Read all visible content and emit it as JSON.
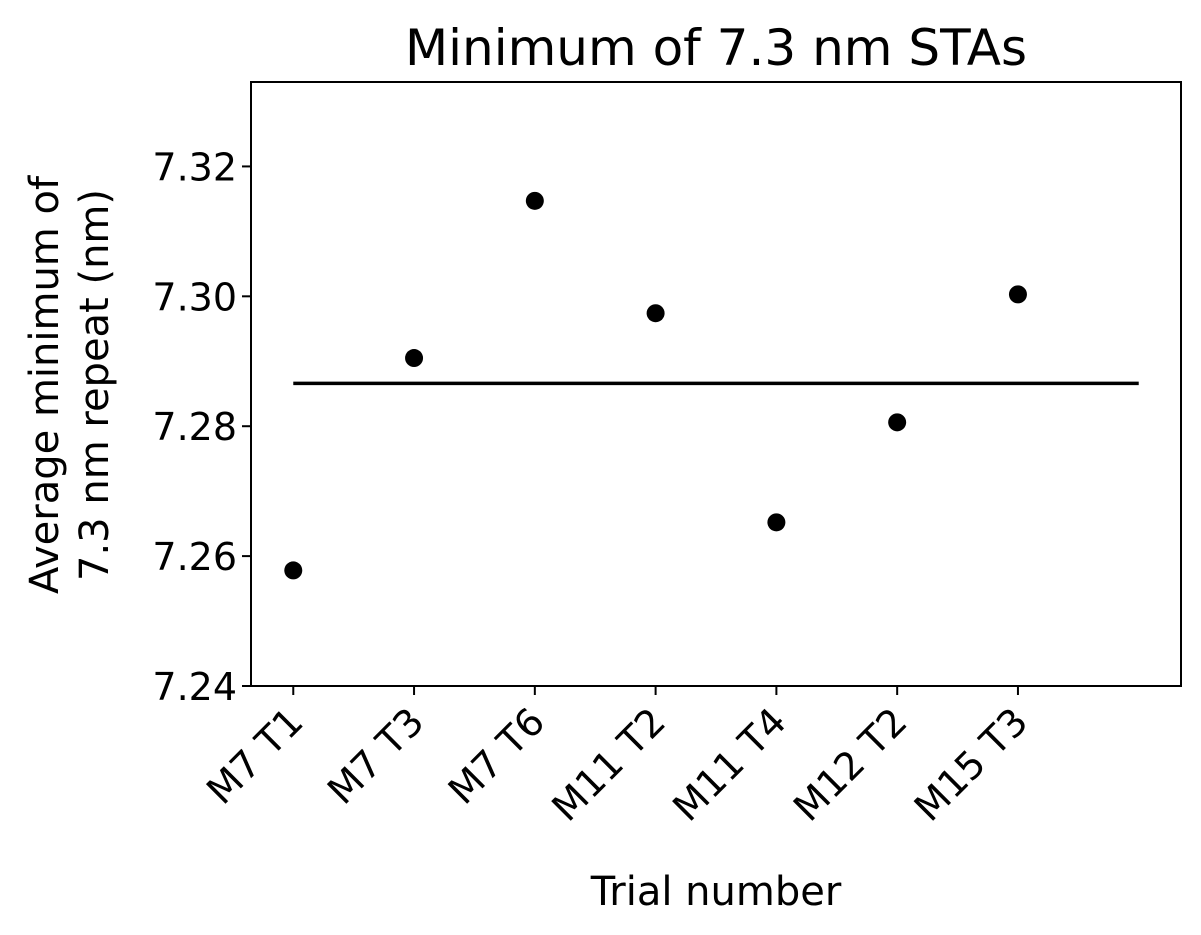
{
  "chart_data": {
    "type": "scatter",
    "title": "Minimum of 7.3 nm STAs",
    "xlabel": "Trial number",
    "ylabel_lines": [
      "Average minimum of",
      "7.3 nm repeat (nm)"
    ],
    "categories": [
      "M7 T1",
      "M7 T3",
      "M7 T6",
      "M11 T2",
      "M11 T4",
      "M12 T2",
      "M15 T3"
    ],
    "values": [
      7.2578,
      7.2905,
      7.3147,
      7.2974,
      7.2652,
      7.2806,
      7.3003
    ],
    "mean_line": {
      "value": 7.2866,
      "x_start": 0,
      "x_end": 7
    },
    "xlim": [
      -0.35,
      7.35
    ],
    "ylim": [
      7.24,
      7.333
    ],
    "yticks": [
      7.24,
      7.26,
      7.28,
      7.3,
      7.32
    ],
    "ytick_labels": [
      "7.24",
      "7.26",
      "7.28",
      "7.30",
      "7.32"
    ],
    "marker_color": "#000000",
    "line_color": "#000000",
    "grid": false,
    "legend": "none"
  }
}
